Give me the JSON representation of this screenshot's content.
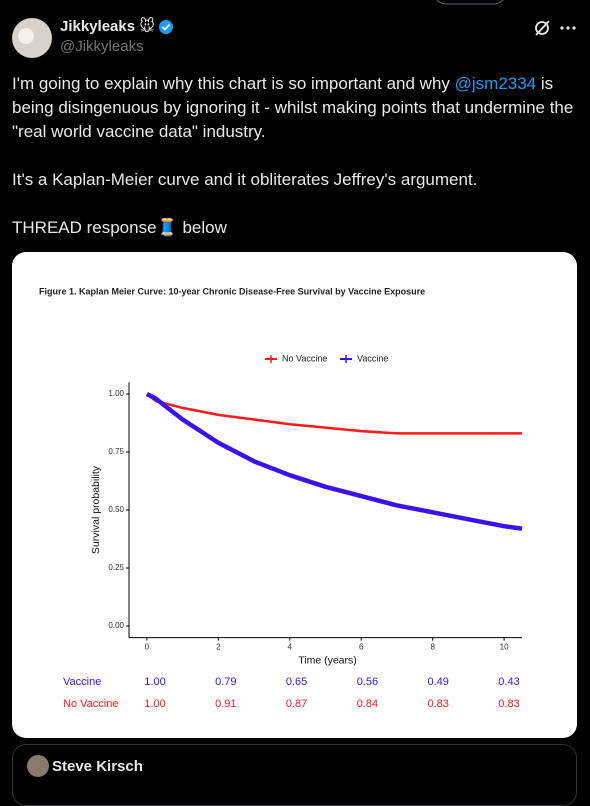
{
  "author": {
    "name": "Jikkyleaks 🐭",
    "handle": "@Jikkyleaks"
  },
  "tweet": {
    "paragraphs": [
      [
        "I'm going to explain why this chart is so important and why ",
        "@jsm2334",
        " is being disingenuous by ignoring it - whilst making points that undermine the \"real world vaccine data\" industry."
      ],
      [
        "It's a Kaplan-Meier curve and it obliterates Jeffrey's argument."
      ],
      [
        "THREAD response🧵 below"
      ]
    ]
  },
  "chart_data": {
    "type": "line",
    "title": "Figure 1. Kaplan Meier Curve: 10-year Chronic Disease-Free Survival by Vaccine Exposure",
    "x_label": "Time (years)",
    "y_label": "Survival probability",
    "x": [
      0,
      0.25,
      0.5,
      1,
      1.5,
      2,
      3,
      4,
      5,
      6,
      7,
      8,
      9,
      10,
      10.5
    ],
    "series": [
      {
        "name": "No Vaccine",
        "color": "#ff1a1a",
        "values": [
          1.0,
          0.97,
          0.96,
          0.94,
          0.925,
          0.91,
          0.89,
          0.87,
          0.855,
          0.84,
          0.83,
          0.83,
          0.83,
          0.83,
          0.83
        ]
      },
      {
        "name": "Vaccine",
        "color": "#3a12ee",
        "values": [
          1.0,
          0.98,
          0.95,
          0.89,
          0.84,
          0.79,
          0.71,
          0.65,
          0.6,
          0.56,
          0.52,
          0.49,
          0.46,
          0.43,
          0.42
        ]
      }
    ],
    "xlim": [
      -0.5,
      10.5
    ],
    "xticks": [
      0,
      2,
      4,
      6,
      8,
      10
    ],
    "ylim": [
      -0.05,
      1.05
    ],
    "yticks": [
      {
        "value": 0,
        "label": "0.00"
      },
      {
        "value": 0.25,
        "label": "0.25"
      },
      {
        "value": 0.5,
        "label": "0.50"
      },
      {
        "value": 0.75,
        "label": "0.75"
      },
      {
        "value": 1,
        "label": "1.00"
      }
    ],
    "legend": "top",
    "risk_table": [
      {
        "name": "Vaccine",
        "color": "#3a12ee",
        "values": [
          "1.00",
          "0.79",
          "0.65",
          "0.56",
          "0.49",
          "0.43"
        ]
      },
      {
        "name": "No Vaccine",
        "color": "#ff1a1a",
        "values": [
          "1.00",
          "0.91",
          "0.87",
          "0.84",
          "0.83",
          "0.83"
        ]
      }
    ]
  },
  "quoted": {
    "name": "Steve Kirsch"
  }
}
